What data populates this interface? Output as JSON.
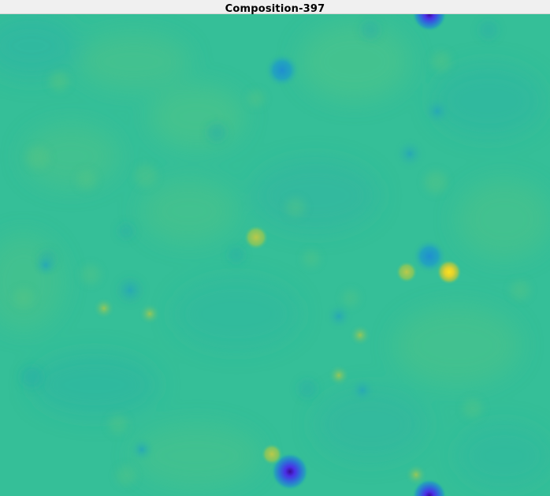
{
  "window": {
    "title": "Composition-397"
  },
  "image": {
    "description_tag": "colormap-field",
    "colors": {
      "background": "#35bf98",
      "light_patch": "#54c686",
      "dark_patch": "#2cb2a6",
      "peak_high": "#fbdd24",
      "peak_mid": "#a8c94a",
      "trough_mid": "#1f98c6",
      "trough_low": "#462ee4",
      "trough_deep": "#3b0e9c"
    }
  }
}
